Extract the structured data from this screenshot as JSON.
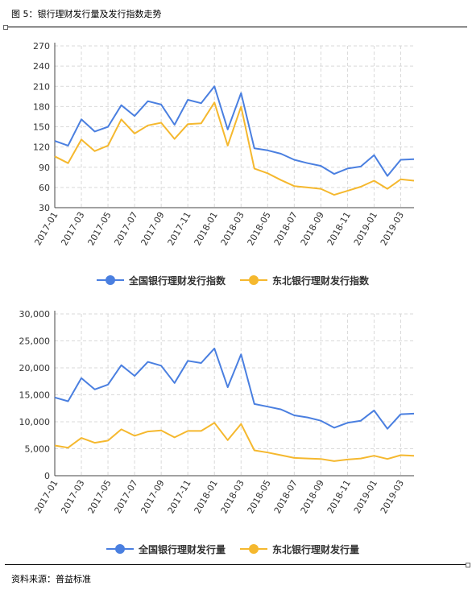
{
  "header": {
    "title": "图 5：银行理财发行量及发行指数走势"
  },
  "footer": {
    "source": "资料来源：普益标准"
  },
  "colors": {
    "national": "#4a7fe0",
    "northeast": "#f5b82e"
  },
  "chart_data": [
    {
      "type": "line",
      "x": [
        "2017-01",
        "2017-02",
        "2017-03",
        "2017-04",
        "2017-05",
        "2017-06",
        "2017-07",
        "2017-08",
        "2017-09",
        "2017-10",
        "2017-11",
        "2017-12",
        "2018-01",
        "2018-02",
        "2018-03",
        "2018-04",
        "2018-05",
        "2018-06",
        "2018-07",
        "2018-08",
        "2018-09",
        "2018-10",
        "2018-11",
        "2018-12",
        "2019-01",
        "2019-02",
        "2019-03",
        "2019-04"
      ],
      "tick_labels": [
        "2017-01",
        "2017-03",
        "2017-05",
        "2017-07",
        "2017-09",
        "2017-11",
        "2018-01",
        "2018-03",
        "2018-05",
        "2018-07",
        "2018-09",
        "2018-11",
        "2019-01",
        "2019-03"
      ],
      "y_ticks": [
        "30",
        "60",
        "90",
        "120",
        "150",
        "180",
        "210",
        "240",
        "270"
      ],
      "ylim": [
        30,
        270
      ],
      "grid": true,
      "legend": "bottom",
      "series": [
        {
          "name": "全国银行理财发行指数",
          "values": [
            129,
            122,
            161,
            143,
            150,
            182,
            166,
            188,
            183,
            153,
            190,
            185,
            210,
            146,
            200,
            118,
            115,
            110,
            101,
            96,
            92,
            80,
            88,
            91,
            108,
            77,
            101,
            102
          ]
        },
        {
          "name": "东北银行理财发行指数",
          "values": [
            106,
            96,
            131,
            114,
            122,
            161,
            140,
            152,
            156,
            132,
            154,
            155,
            186,
            122,
            180,
            88,
            81,
            71,
            62,
            60,
            58,
            49,
            55,
            61,
            70,
            58,
            72,
            70
          ]
        }
      ]
    },
    {
      "type": "line",
      "x": [
        "2017-01",
        "2017-02",
        "2017-03",
        "2017-04",
        "2017-05",
        "2017-06",
        "2017-07",
        "2017-08",
        "2017-09",
        "2017-10",
        "2017-11",
        "2017-12",
        "2018-01",
        "2018-02",
        "2018-03",
        "2018-04",
        "2018-05",
        "2018-06",
        "2018-07",
        "2018-08",
        "2018-09",
        "2018-10",
        "2018-11",
        "2018-12",
        "2019-01",
        "2019-02",
        "2019-03",
        "2019-04"
      ],
      "tick_labels": [
        "2017-01",
        "2017-03",
        "2017-05",
        "2017-07",
        "2017-09",
        "2017-11",
        "2018-01",
        "2018-03",
        "2018-05",
        "2018-07",
        "2018-09",
        "2018-11",
        "2019-01",
        "2019-03"
      ],
      "y_ticks": [
        "0",
        "5,000",
        "10,000",
        "15,000",
        "20,000",
        "25,000",
        "30,000"
      ],
      "ylim": [
        0,
        30000
      ],
      "grid": true,
      "legend": "bottom",
      "series": [
        {
          "name": "全国银行理财发行量",
          "values": [
            14500,
            13800,
            18100,
            16000,
            16900,
            20500,
            18500,
            21100,
            20400,
            17200,
            21300,
            20900,
            23600,
            16400,
            22500,
            13300,
            12800,
            12300,
            11200,
            10800,
            10200,
            8900,
            9800,
            10200,
            12100,
            8700,
            11400,
            11500
          ]
        },
        {
          "name": "东北银行理财发行量",
          "values": [
            5600,
            5200,
            7000,
            6100,
            6500,
            8600,
            7400,
            8200,
            8400,
            7100,
            8300,
            8300,
            9800,
            6600,
            9600,
            4700,
            4300,
            3800,
            3300,
            3200,
            3100,
            2700,
            3000,
            3200,
            3700,
            3100,
            3800,
            3700
          ]
        }
      ]
    }
  ]
}
